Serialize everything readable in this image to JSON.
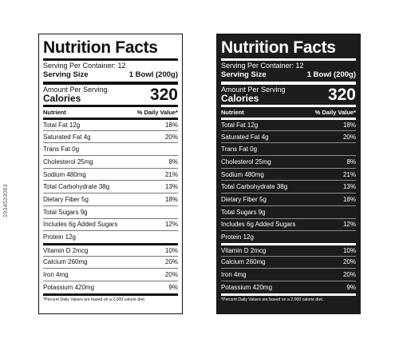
{
  "label": {
    "title": "Nutrition Facts",
    "serving_per_container": "Serving Per Container: 12",
    "serving_size_label": "Serving Size",
    "serving_size_value": "1 Bowl (200g)",
    "amount_per_serving": "Amount Per Serving",
    "calories_label": "Calories",
    "calories_value": "320",
    "nutrient_header": "Nutrient",
    "daily_value_header": "% Daily Value*",
    "rows": [
      {
        "name": "Total Fat 12g",
        "dv": "18%"
      },
      {
        "name": "Saturated Fat 4g",
        "dv": "20%"
      },
      {
        "name": "Trans Fat 0g",
        "dv": ""
      },
      {
        "name": "Cholesterol 25mg",
        "dv": "8%"
      },
      {
        "name": "Sodium 480mg",
        "dv": "21%"
      },
      {
        "name": "Total Carbohydrate 38g",
        "dv": "13%"
      },
      {
        "name": "Dietary Fiber 5g",
        "dv": "18%"
      },
      {
        "name": "Total Sugars 9g",
        "dv": ""
      },
      {
        "name": "Includes 6g Added Sugars",
        "dv": "12%"
      },
      {
        "name": "Protein 12g",
        "dv": ""
      },
      {
        "name": "Vitamin D 2mcg",
        "dv": "10%"
      },
      {
        "name": "Calcium 260mg",
        "dv": "20%"
      },
      {
        "name": "Iron 4mg",
        "dv": "20%"
      },
      {
        "name": "Potassium 420mg",
        "dv": "9%"
      }
    ],
    "footnote": "*Percent Daily Values are based on a 2,000 calorie diet."
  },
  "credit": "1934533063",
  "colors": {
    "dark_panel_bg": "#1c1c1c",
    "light_panel_bg": "#ffffff",
    "ink": "#111111"
  }
}
